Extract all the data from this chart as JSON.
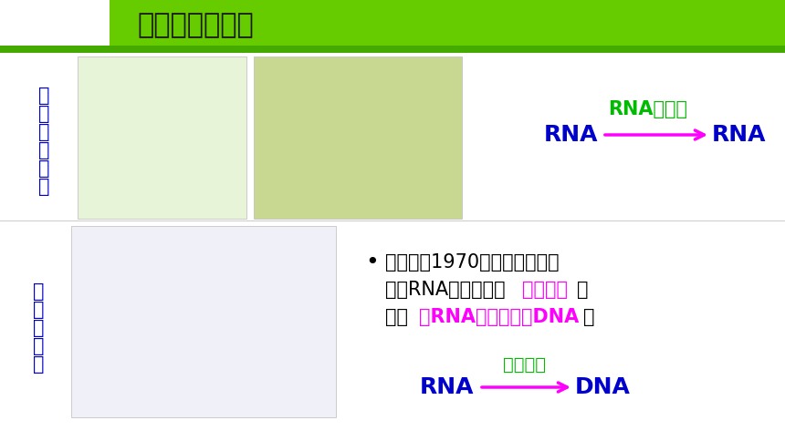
{
  "title": "中心法则的补充",
  "title_fontsize": 22,
  "title_color": "#1a1a1a",
  "header_bg_color": "#66cc00",
  "bg_color": "#ffffff",
  "tobacco_virus_label": "烟\n草\n花\n叶\n病\n毒",
  "tobacco_virus_color": "#0000cc",
  "aids_virus_label": "艾\n滋\n病\n病\n毒",
  "aids_virus_color": "#0000cc",
  "rna_replicase_label": "RNA复制酶",
  "rna_replicase_color": "#00bb00",
  "rna_arrow_color": "#ff00ff",
  "rna_text_color": "#0000cc",
  "rna_left": "RNA",
  "rna_right": "RNA",
  "reverse_enzyme_label": "逆转录酶",
  "reverse_enzyme_color": "#00bb00",
  "reverse_arrow_color": "#ff00ff",
  "dna_text_color": "#0000cc",
  "rna_left2": "RNA",
  "dna_right": "DNA",
  "bullet_color": "#000000",
  "highlight_color": "#ff00ff",
  "bullet_fontsize": 15,
  "line1": "资料二：1970年，科学家在致",
  "line2_part1": "癌的RNA病毒中发现",
  "line2_highlight": "逆转录酶",
  "line2_part2": "，",
  "line3_part1": "它能 ",
  "line3_highlight": "以RNA为模板合成DNA",
  "line3_part2": "。"
}
